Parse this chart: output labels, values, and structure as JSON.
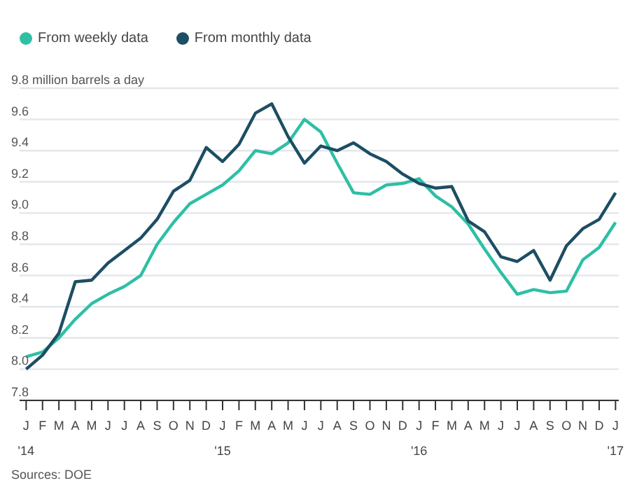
{
  "chart_data": {
    "type": "line",
    "categories": [
      "J\n'14",
      "F",
      "M",
      "A",
      "M",
      "J",
      "J",
      "A",
      "S",
      "O",
      "N",
      "D",
      "J\n'15",
      "F",
      "M",
      "A",
      "M",
      "J",
      "J",
      "A",
      "S",
      "O",
      "N",
      "D",
      "J\n'16",
      "F",
      "M",
      "A",
      "M",
      "J",
      "J",
      "A",
      "S",
      "O",
      "N",
      "D",
      "J\n'17"
    ],
    "series": [
      {
        "name": "From weekly data",
        "color": "#2ebfa5",
        "values": [
          8.08,
          8.11,
          8.2,
          8.32,
          8.42,
          8.48,
          8.53,
          8.6,
          8.8,
          8.94,
          9.06,
          9.12,
          9.18,
          9.27,
          9.4,
          9.38,
          9.45,
          9.6,
          9.52,
          9.32,
          9.13,
          9.12,
          9.18,
          9.19,
          9.22,
          9.11,
          9.04,
          8.93,
          8.77,
          8.62,
          8.48,
          8.51,
          8.49,
          8.5,
          8.7,
          8.78,
          8.94
        ]
      },
      {
        "name": "From monthly data",
        "color": "#1d4e63",
        "values": [
          8.0,
          8.09,
          8.23,
          8.56,
          8.57,
          8.68,
          8.76,
          8.84,
          8.96,
          9.14,
          9.21,
          9.42,
          9.33,
          9.44,
          9.64,
          9.7,
          9.49,
          9.32,
          9.43,
          9.4,
          9.45,
          9.38,
          9.33,
          9.25,
          9.19,
          9.16,
          9.17,
          8.95,
          8.88,
          8.72,
          8.69,
          8.76,
          8.57,
          8.79,
          8.9,
          8.96,
          9.13
        ]
      }
    ],
    "ylim": [
      7.8,
      9.8
    ],
    "yticks": [
      7.8,
      {
        "value": 8,
        "label": "8.0"
      },
      8.2,
      8.4,
      8.6,
      8.8,
      {
        "value": 9,
        "label": "9.0"
      },
      9.2,
      9.4,
      9.6,
      {
        "value": 9.8,
        "label": "9.8 million barrels a day"
      }
    ],
    "grid": "y",
    "legend": "top left",
    "marker": "none",
    "line_style": "solid",
    "annotations": [
      "Sources: DOE"
    ]
  }
}
